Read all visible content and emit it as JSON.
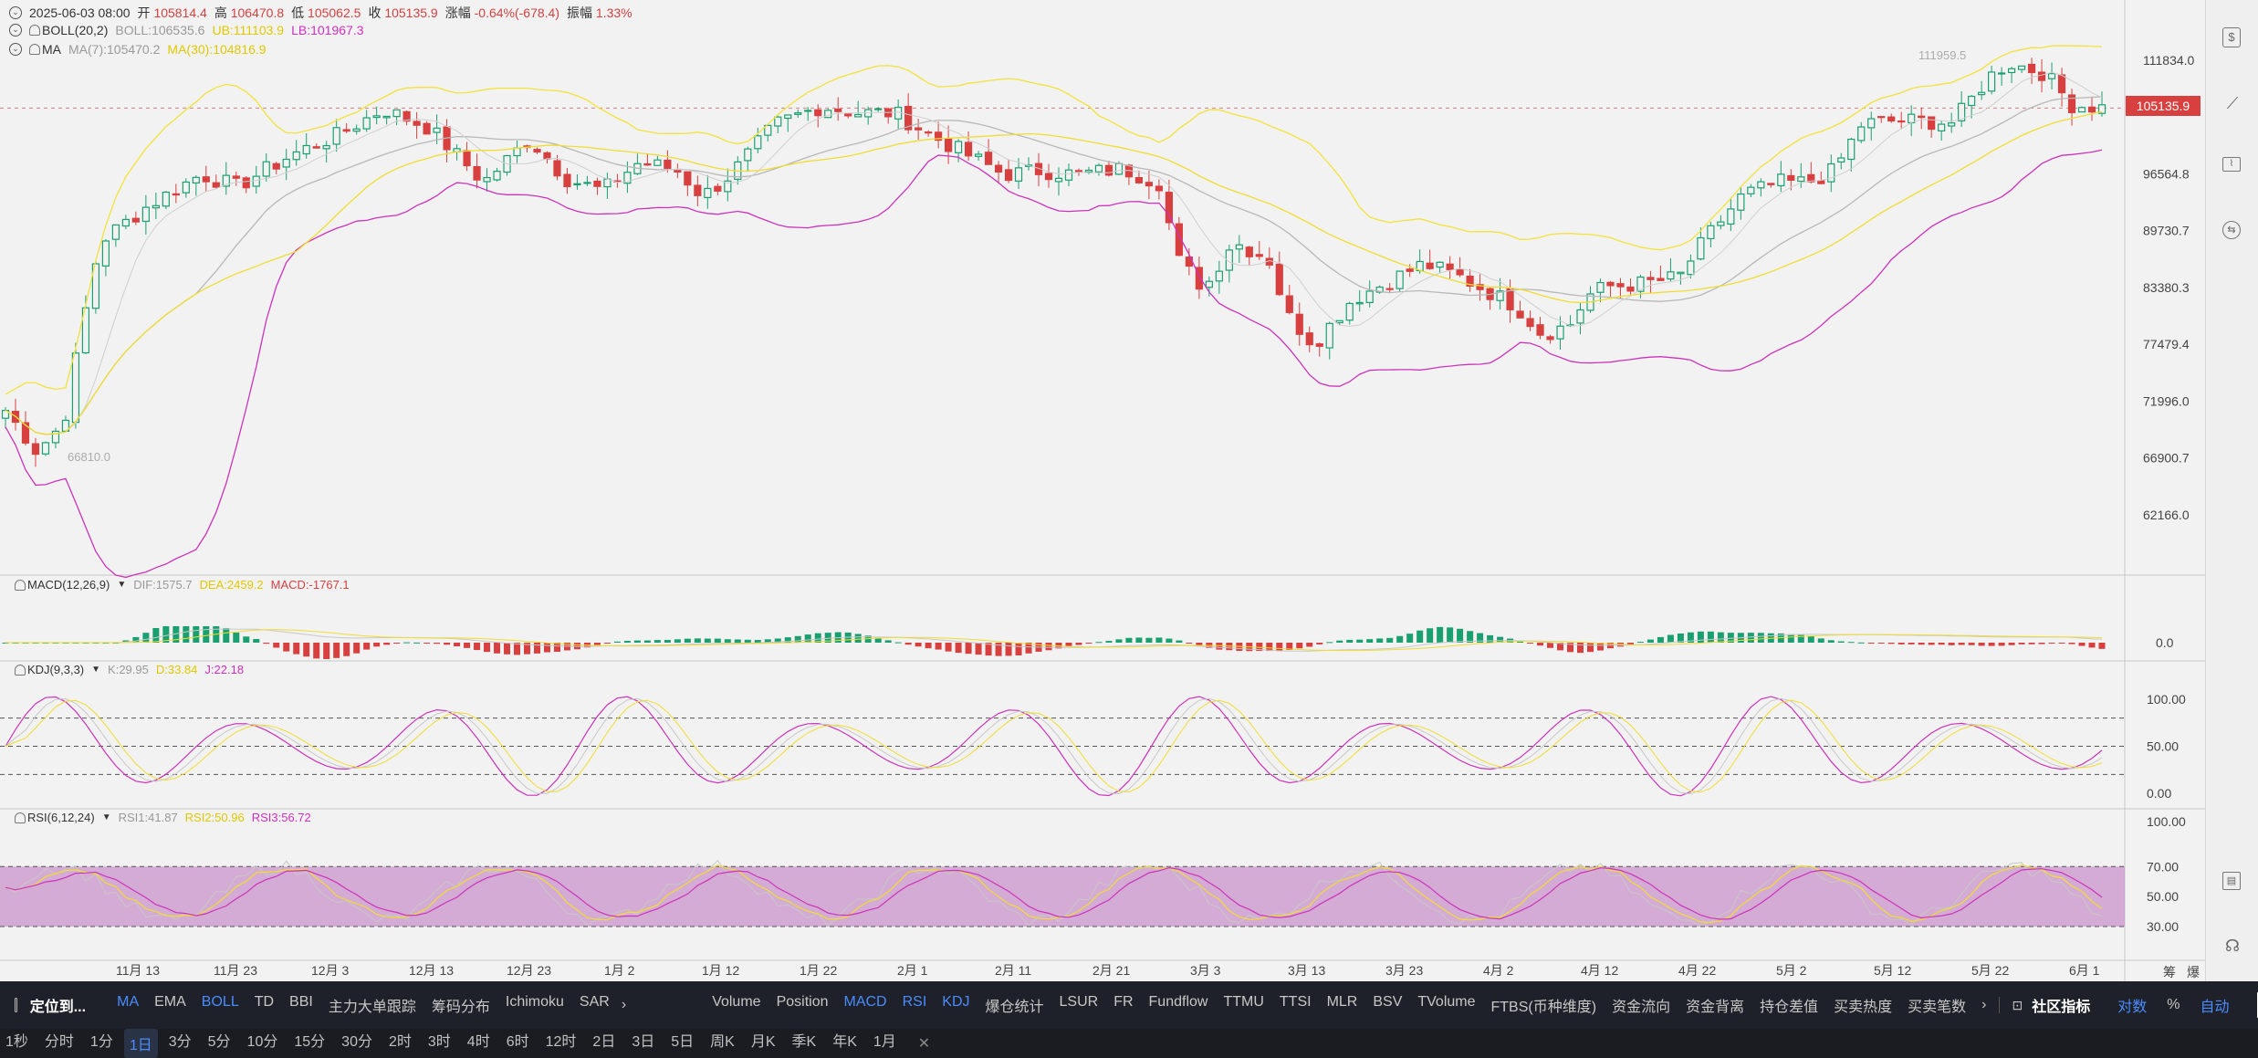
{
  "header": {
    "date": "2025-06-03 08:00",
    "open_label": "开",
    "open": "105814.4",
    "high_label": "高",
    "high": "106470.8",
    "low_label": "低",
    "low": "105062.5",
    "close_label": "收",
    "close": "105135.9",
    "change_label": "涨幅",
    "change": "-0.64%(-678.4)",
    "amp_label": "振幅",
    "amp": "1.33%"
  },
  "boll": {
    "name": "BOLL(20,2)",
    "mid": "BOLL:106535.6",
    "ub": "UB:111103.9",
    "lb": "LB:101967.3"
  },
  "ma": {
    "name": "MA",
    "ma7": "MA(7):105470.2",
    "ma30": "MA(30):104816.9"
  },
  "main_axis": {
    "ticks": [
      "111834.0",
      "105135.9",
      "96564.8",
      "89730.7",
      "83380.3",
      "77479.4",
      "71996.0",
      "66900.7",
      "62166.0"
    ],
    "last_price": "105135.9"
  },
  "annotations": {
    "high": "111959.5",
    "low": "66810.0"
  },
  "macd": {
    "name": "MACD(12,26,9)",
    "dif": "DIF:1575.7",
    "dea": "DEA:2459.2",
    "macd": "MACD:-1767.1",
    "axis": [
      "0.0"
    ]
  },
  "kdj": {
    "name": "KDJ(9,3,3)",
    "k": "K:29.95",
    "d": "D:33.84",
    "j": "J:22.18",
    "axis": [
      "100.00",
      "50.00",
      "0.00"
    ]
  },
  "rsi": {
    "name": "RSI(6,12,24)",
    "rsi1": "RSI1:41.87",
    "rsi2": "RSI2:50.96",
    "rsi3": "RSI3:56.72",
    "axis": [
      "100.00",
      "70.00",
      "50.00",
      "30.00"
    ]
  },
  "x_axis": [
    "11月 13",
    "11月 23",
    "12月 3",
    "12月 13",
    "12月 23",
    "1月 2",
    "1月 12",
    "1月 22",
    "2月 1",
    "2月 11",
    "2月 21",
    "3月 3",
    "3月 13",
    "3月 23",
    "4月 2",
    "4月 12",
    "4月 22",
    "5月 2",
    "5月 12",
    "5月 22",
    "6月 1"
  ],
  "x_axis_extra": [
    "筹",
    "爆"
  ],
  "toolbar": {
    "locate": "定位到...",
    "main_indicators": [
      "MA",
      "EMA",
      "BOLL",
      "TD",
      "BBI",
      "主力大单跟踪",
      "筹码分布",
      "Ichimoku",
      "SAR"
    ],
    "sub_indicators": [
      "Volume",
      "Position",
      "MACD",
      "RSI",
      "KDJ",
      "爆仓统计",
      "LSUR",
      "FR",
      "Fundflow",
      "TTMU",
      "TTSI",
      "MLR",
      "BSV",
      "TVolume",
      "FTBS(币种维度)",
      "资金流向",
      "资金背离",
      "持仓差值",
      "买卖热度",
      "买卖笔数"
    ],
    "community": "社区指标",
    "log": "对数",
    "percent": "%",
    "auto": "自动"
  },
  "timeframes": [
    "1秒",
    "分时",
    "1分",
    "1日",
    "3分",
    "5分",
    "10分",
    "15分",
    "30分",
    "2时",
    "3时",
    "4时",
    "6时",
    "12时",
    "2日",
    "3日",
    "5日",
    "周K",
    "月K",
    "季K",
    "年K",
    "1月"
  ],
  "active_timeframe": "1日",
  "colors": {
    "up": "#1aa070",
    "down": "#d84040",
    "boll_mid": "#b8b8b8",
    "boll_band": "#f2e23a",
    "boll_lb": "#cc33bb",
    "rsi_zone": "#cc99cc"
  }
}
